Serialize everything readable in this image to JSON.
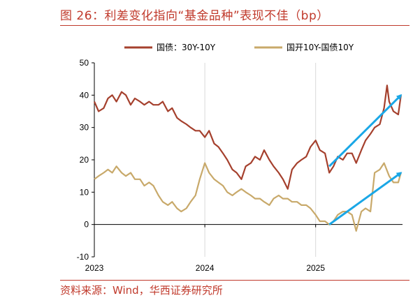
{
  "header": {
    "title": "图 26：利差变化指向“基金品种”表现不佳（bp）"
  },
  "footer": {
    "source": "资料来源：Wind，华西证券研究所"
  },
  "colors": {
    "series1": "#a5402d",
    "series2": "#c8a96a",
    "arrow": "#1aa7e6",
    "accent": "#c0392b"
  },
  "chart_data": {
    "type": "line",
    "title": "图 26：利差变化指向“基金品种”表现不佳（bp）",
    "xlabel": "",
    "ylabel": "",
    "ylim": [
      -10,
      50
    ],
    "yticks": [
      -10,
      0,
      10,
      20,
      30,
      40,
      50
    ],
    "xlim": [
      "2023-01-01",
      "2025-10-15"
    ],
    "xticks": [
      {
        "date": "2023-01-01",
        "label": "2023"
      },
      {
        "date": "2024-01-01",
        "label": "2024"
      },
      {
        "date": "2025-01-01",
        "label": "2025"
      }
    ],
    "grid": "vertical lines at year ticks",
    "legend": "top",
    "series": [
      {
        "name": "国债：30Y-10Y",
        "color": "#a5402d",
        "points": [
          [
            "2023-01-01",
            38
          ],
          [
            "2023-01-15",
            35
          ],
          [
            "2023-02-01",
            36
          ],
          [
            "2023-02-15",
            39
          ],
          [
            "2023-03-01",
            40
          ],
          [
            "2023-03-15",
            38
          ],
          [
            "2023-04-01",
            41
          ],
          [
            "2023-04-15",
            40
          ],
          [
            "2023-05-01",
            37
          ],
          [
            "2023-05-15",
            39
          ],
          [
            "2023-06-01",
            38
          ],
          [
            "2023-06-15",
            37
          ],
          [
            "2023-07-01",
            38
          ],
          [
            "2023-07-15",
            37
          ],
          [
            "2023-08-01",
            37
          ],
          [
            "2023-08-15",
            38
          ],
          [
            "2023-09-01",
            35
          ],
          [
            "2023-09-15",
            36
          ],
          [
            "2023-10-01",
            33
          ],
          [
            "2023-10-15",
            32
          ],
          [
            "2023-11-01",
            31
          ],
          [
            "2023-11-15",
            30
          ],
          [
            "2023-12-01",
            29
          ],
          [
            "2023-12-15",
            29
          ],
          [
            "2024-01-01",
            27
          ],
          [
            "2024-01-15",
            29
          ],
          [
            "2024-02-01",
            25
          ],
          [
            "2024-02-15",
            24
          ],
          [
            "2024-03-01",
            22
          ],
          [
            "2024-03-15",
            20
          ],
          [
            "2024-04-01",
            17
          ],
          [
            "2024-04-15",
            16
          ],
          [
            "2024-05-01",
            14
          ],
          [
            "2024-05-15",
            18
          ],
          [
            "2024-06-01",
            19
          ],
          [
            "2024-06-15",
            21
          ],
          [
            "2024-07-01",
            20
          ],
          [
            "2024-07-15",
            23
          ],
          [
            "2024-08-01",
            20
          ],
          [
            "2024-08-15",
            18
          ],
          [
            "2024-09-01",
            16
          ],
          [
            "2024-09-15",
            14
          ],
          [
            "2024-10-01",
            11
          ],
          [
            "2024-10-15",
            17
          ],
          [
            "2024-11-01",
            19
          ],
          [
            "2024-11-15",
            20
          ],
          [
            "2024-12-01",
            21
          ],
          [
            "2024-12-15",
            24
          ],
          [
            "2025-01-01",
            26
          ],
          [
            "2025-01-15",
            23
          ],
          [
            "2025-02-01",
            22
          ],
          [
            "2025-02-15",
            16
          ],
          [
            "2025-03-01",
            18
          ],
          [
            "2025-03-15",
            21
          ],
          [
            "2025-04-01",
            20
          ],
          [
            "2025-04-15",
            22
          ],
          [
            "2025-05-01",
            22
          ],
          [
            "2025-05-15",
            19
          ],
          [
            "2025-06-01",
            23
          ],
          [
            "2025-06-15",
            26
          ],
          [
            "2025-07-01",
            28
          ],
          [
            "2025-07-15",
            30
          ],
          [
            "2025-08-01",
            31
          ],
          [
            "2025-08-15",
            36
          ],
          [
            "2025-08-25",
            43
          ],
          [
            "2025-09-01",
            38
          ],
          [
            "2025-09-15",
            35
          ],
          [
            "2025-10-01",
            34
          ],
          [
            "2025-10-10",
            40
          ]
        ]
      },
      {
        "name": "国开10Y-国债10Y",
        "color": "#c8a96a",
        "points": [
          [
            "2023-01-01",
            14
          ],
          [
            "2023-01-15",
            15
          ],
          [
            "2023-02-01",
            16
          ],
          [
            "2023-02-15",
            17
          ],
          [
            "2023-03-01",
            16
          ],
          [
            "2023-03-15",
            18
          ],
          [
            "2023-04-01",
            16
          ],
          [
            "2023-04-15",
            15
          ],
          [
            "2023-05-01",
            16
          ],
          [
            "2023-05-15",
            14
          ],
          [
            "2023-06-01",
            14
          ],
          [
            "2023-06-15",
            12
          ],
          [
            "2023-07-01",
            13
          ],
          [
            "2023-07-15",
            12
          ],
          [
            "2023-08-01",
            9
          ],
          [
            "2023-08-15",
            7
          ],
          [
            "2023-09-01",
            6
          ],
          [
            "2023-09-15",
            7
          ],
          [
            "2023-10-01",
            5
          ],
          [
            "2023-10-15",
            4
          ],
          [
            "2023-11-01",
            5
          ],
          [
            "2023-11-15",
            7
          ],
          [
            "2023-12-01",
            9
          ],
          [
            "2023-12-15",
            14
          ],
          [
            "2024-01-01",
            19
          ],
          [
            "2024-01-15",
            16
          ],
          [
            "2024-02-01",
            14
          ],
          [
            "2024-02-15",
            13
          ],
          [
            "2024-03-01",
            12
          ],
          [
            "2024-03-15",
            10
          ],
          [
            "2024-04-01",
            9
          ],
          [
            "2024-04-15",
            10
          ],
          [
            "2024-05-01",
            11
          ],
          [
            "2024-05-15",
            10
          ],
          [
            "2024-06-01",
            9
          ],
          [
            "2024-06-15",
            8
          ],
          [
            "2024-07-01",
            8
          ],
          [
            "2024-07-15",
            7
          ],
          [
            "2024-08-01",
            6
          ],
          [
            "2024-08-15",
            8
          ],
          [
            "2024-09-01",
            9
          ],
          [
            "2024-09-15",
            8
          ],
          [
            "2024-10-01",
            8
          ],
          [
            "2024-10-15",
            7
          ],
          [
            "2024-11-01",
            7
          ],
          [
            "2024-11-15",
            6
          ],
          [
            "2024-12-01",
            6
          ],
          [
            "2024-12-15",
            5
          ],
          [
            "2025-01-01",
            3
          ],
          [
            "2025-01-15",
            1
          ],
          [
            "2025-02-01",
            1
          ],
          [
            "2025-02-15",
            0
          ],
          [
            "2025-03-01",
            1
          ],
          [
            "2025-03-15",
            3
          ],
          [
            "2025-04-01",
            4
          ],
          [
            "2025-04-15",
            4
          ],
          [
            "2025-05-01",
            3
          ],
          [
            "2025-05-15",
            -2
          ],
          [
            "2025-06-01",
            4
          ],
          [
            "2025-06-15",
            5
          ],
          [
            "2025-07-01",
            4
          ],
          [
            "2025-07-15",
            16
          ],
          [
            "2025-08-01",
            17
          ],
          [
            "2025-08-15",
            19
          ],
          [
            "2025-09-01",
            15
          ],
          [
            "2025-09-15",
            13
          ],
          [
            "2025-10-01",
            13
          ],
          [
            "2025-10-10",
            16
          ]
        ]
      }
    ],
    "annotations": [
      {
        "type": "arrow",
        "from": [
          "2025-02-15",
          18
        ],
        "to": [
          "2025-10-10",
          40
        ]
      },
      {
        "type": "arrow",
        "from": [
          "2025-02-15",
          0
        ],
        "to": [
          "2025-10-10",
          16
        ]
      }
    ]
  }
}
